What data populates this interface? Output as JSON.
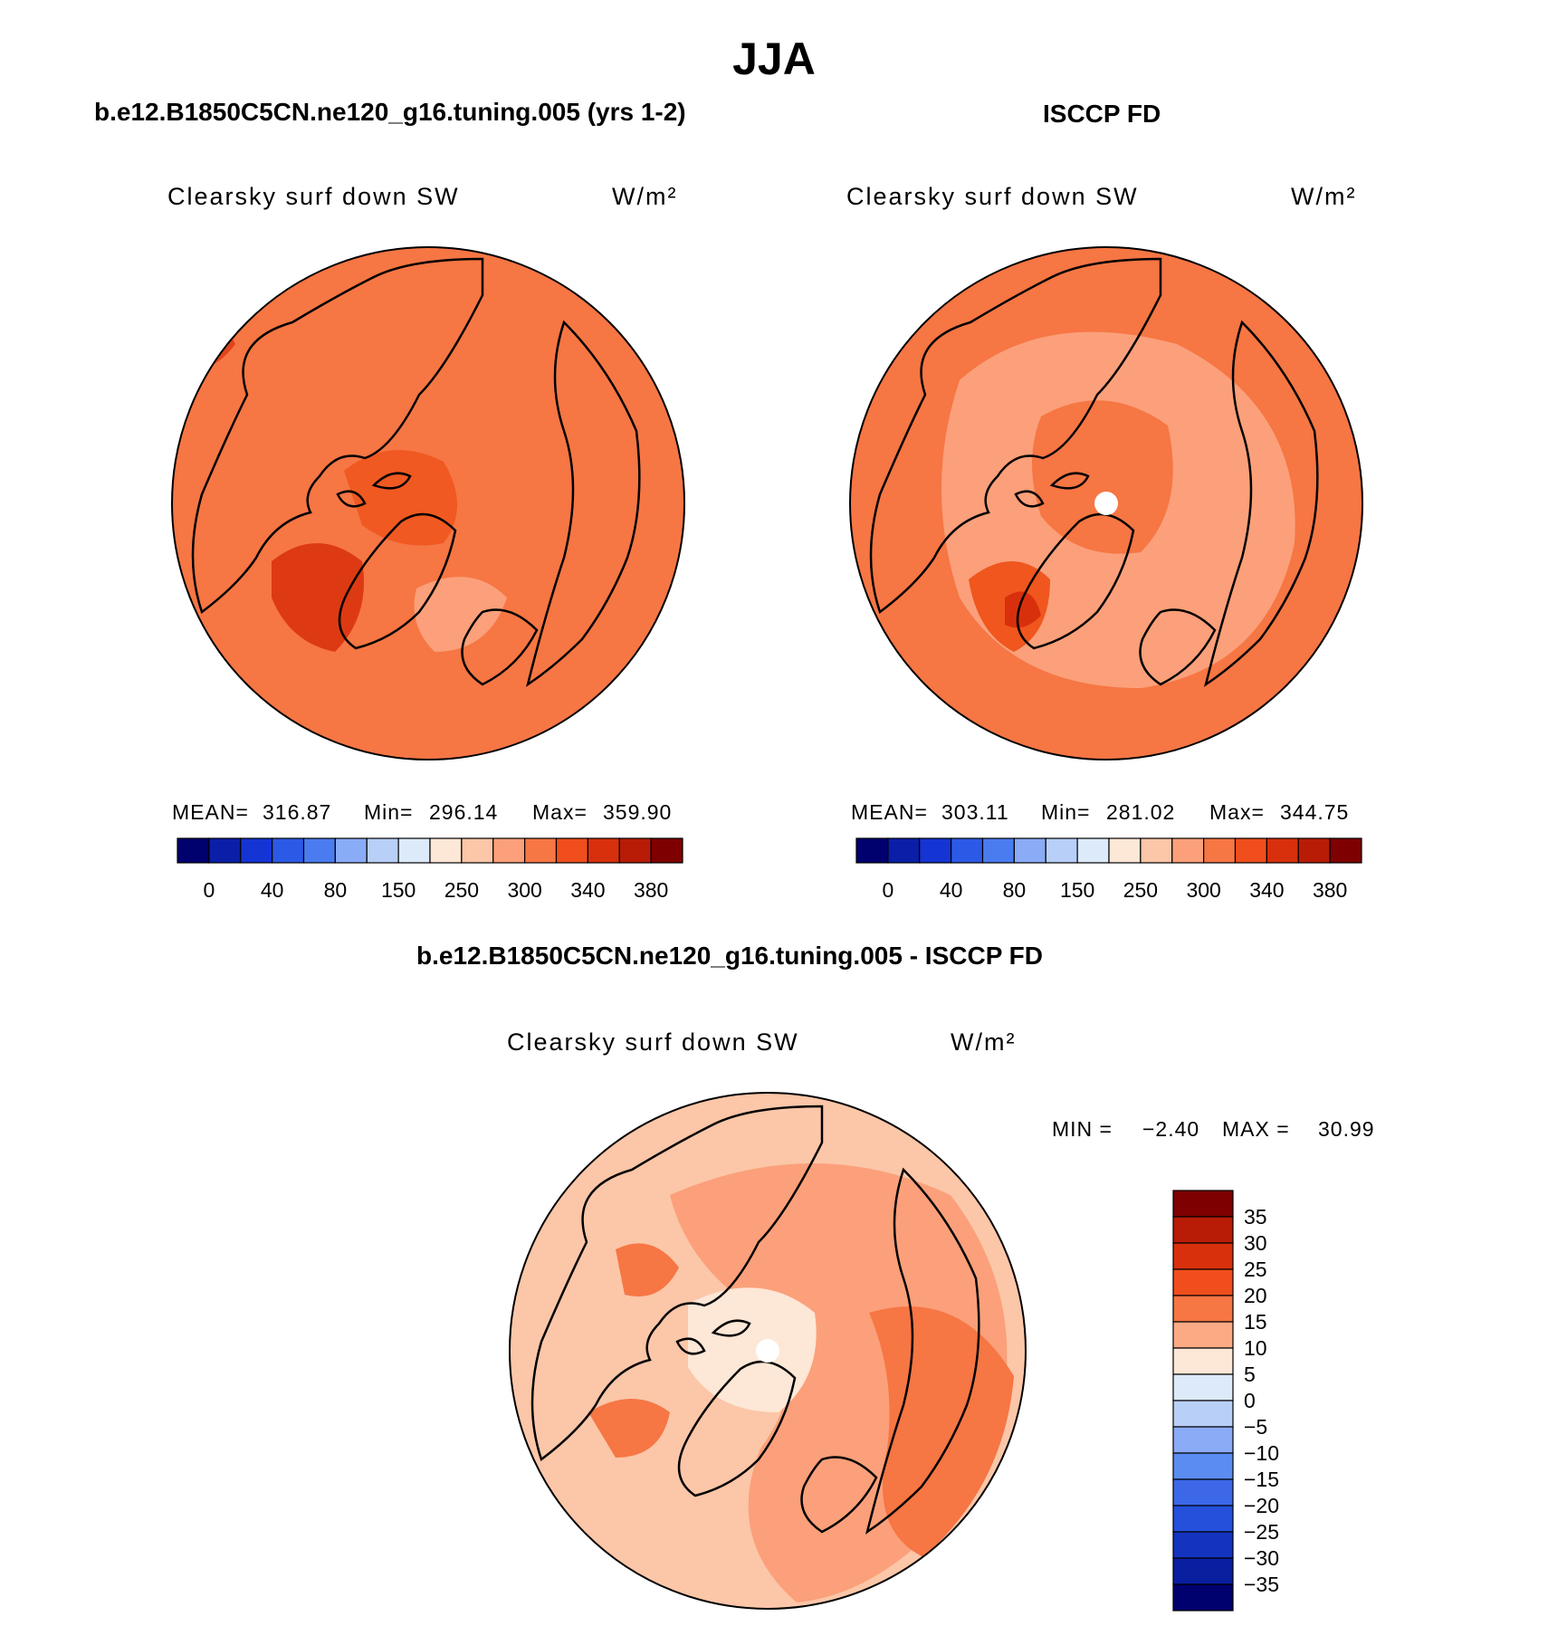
{
  "title": "JJA",
  "panels": [
    {
      "title": "b.e12.B1850C5CN.ne120_g16.tuning.005 (yrs 1-2)",
      "variable": "Clearsky surf down SW",
      "units": "W/m²",
      "stats": {
        "mean_label": "MEAN=",
        "mean": "316.87",
        "min_label": "Min=",
        "min": "296.14",
        "max_label": "Max=",
        "max": "359.90"
      }
    },
    {
      "title": "ISCCP FD",
      "variable": "Clearsky surf down SW",
      "units": "W/m²",
      "stats": {
        "mean_label": "MEAN=",
        "mean": "303.11",
        "min_label": "Min=",
        "min": "281.02",
        "max_label": "Max=",
        "max": "344.75"
      }
    },
    {
      "title": "b.e12.B1850C5CN.ne120_g16.tuning.005 - ISCCP FD",
      "variable": "Clearsky surf down SW",
      "units": "W/m²",
      "stats_text": {
        "min_label": "MIN =",
        "min": "−2.40",
        "max_label": "MAX =",
        "max": "30.99"
      }
    }
  ],
  "chart_data": [
    {
      "type": "heatmap",
      "projection": "polar stereographic (north)",
      "title": "b.e12.B1850C5CN.ne120_g16.tuning.005 (yrs 1-2)",
      "variable": "Clearsky surf down SW",
      "units": "W/m²",
      "mean": 316.87,
      "min": 296.14,
      "max": 359.9,
      "colorbar": {
        "tick_labels": [
          "0",
          "40",
          "80",
          "150",
          "250",
          "300",
          "340",
          "380"
        ],
        "colors": [
          "#00006e",
          "#0a1ea8",
          "#1434d4",
          "#2c5ae6",
          "#4a7cf0",
          "#8aabf5",
          "#b8cff8",
          "#dceaf9",
          "#fde7d6",
          "#fcc6a8",
          "#fba07a",
          "#f67644",
          "#f04e1c",
          "#d8300c",
          "#b81c06",
          "#7e0000"
        ]
      },
      "dominant_range": "300-340"
    },
    {
      "type": "heatmap",
      "projection": "polar stereographic (north)",
      "title": "ISCCP FD",
      "variable": "Clearsky surf down SW",
      "units": "W/m²",
      "mean": 303.11,
      "min": 281.02,
      "max": 344.75,
      "colorbar": {
        "tick_labels": [
          "0",
          "40",
          "80",
          "150",
          "250",
          "300",
          "340",
          "380"
        ],
        "colors": [
          "#00006e",
          "#0a1ea8",
          "#1434d4",
          "#2c5ae6",
          "#4a7cf0",
          "#8aabf5",
          "#b8cff8",
          "#dceaf9",
          "#fde7d6",
          "#fcc6a8",
          "#fba07a",
          "#f67644",
          "#f04e1c",
          "#d8300c",
          "#b81c06",
          "#7e0000"
        ]
      },
      "dominant_range": "250-340"
    },
    {
      "type": "heatmap",
      "projection": "polar stereographic (north)",
      "title": "b.e12.B1850C5CN.ne120_g16.tuning.005 - ISCCP FD",
      "variable": "Clearsky surf down SW",
      "units": "W/m²",
      "min": -2.4,
      "max": 30.99,
      "colorbar": {
        "tick_labels": [
          "35",
          "30",
          "25",
          "20",
          "15",
          "10",
          "5",
          "0",
          "−5",
          "−10",
          "−15",
          "−20",
          "−25",
          "−30",
          "−35"
        ],
        "colors": [
          "#7e0000",
          "#b81c06",
          "#d8300c",
          "#f04e1c",
          "#f67644",
          "#fcaa84",
          "#fde7d6",
          "#dceaf9",
          "#b8cff8",
          "#8aabf5",
          "#5b8cf0",
          "#3c68e8",
          "#2450dc",
          "#1434c0",
          "#0a1ea0",
          "#00006e"
        ]
      },
      "dominant_range": "5-25"
    }
  ]
}
